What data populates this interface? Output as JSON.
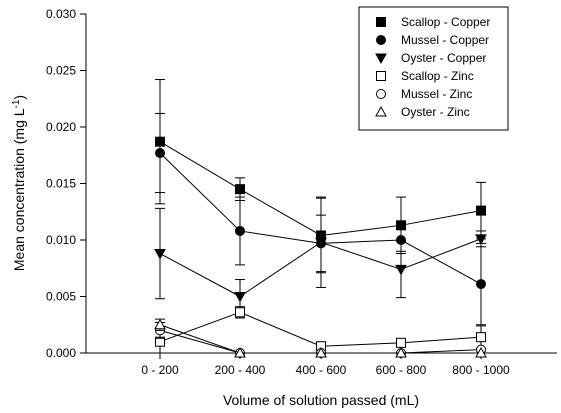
{
  "chart_data": {
    "type": "line",
    "xlabel": "Volume of solution passed (mL)",
    "ylabel": "Mean concentration (mg L",
    "ylabel_superscript": "-1",
    "ylabel_close": ")",
    "categories": [
      "0 - 200",
      "200 - 400",
      "400 - 600",
      "600 - 800",
      "800 - 1000"
    ],
    "ylim": [
      0,
      0.03
    ],
    "yticks": [
      "0.000",
      "0.005",
      "0.010",
      "0.015",
      "0.020",
      "0.025",
      "0.030"
    ],
    "legend_position": "top-right",
    "series": [
      {
        "name": "Scallop - Copper",
        "marker": "square-filled",
        "values": [
          0.0187,
          0.0145,
          0.0104,
          0.0113,
          0.0126
        ],
        "error": [
          0.0055,
          0.001,
          0.0033,
          0.0025,
          0.0025
        ]
      },
      {
        "name": "Mussel - Copper",
        "marker": "circle-filled",
        "values": [
          0.0177,
          0.0108,
          0.0097,
          0.01,
          0.0061
        ],
        "error": [
          0.0035,
          0.003,
          0.0025,
          0.001,
          0.0036
        ]
      },
      {
        "name": "Oyster - Copper",
        "marker": "triangle-down-filled",
        "values": [
          0.0088,
          0.005,
          0.0098,
          0.0074,
          0.0101
        ],
        "error": [
          0.004,
          0.0015,
          0.004,
          0.0025,
          0.0007
        ]
      },
      {
        "name": "Scallop - Zinc",
        "marker": "square-open",
        "values": [
          0.001,
          0.0036,
          0.0006,
          0.0009,
          0.0014
        ],
        "error": [
          0.001,
          0.0005,
          0.0002,
          0.0002,
          0.001
        ]
      },
      {
        "name": "Mussel - Zinc",
        "marker": "circle-open",
        "values": [
          0.002,
          0.0,
          0.0,
          0.0,
          0.0003
        ],
        "error": [
          0.0007,
          0,
          0,
          0,
          0
        ]
      },
      {
        "name": "Oyster - Zinc",
        "marker": "triangle-up-open",
        "values": [
          0.0025,
          0.0,
          0.0,
          0.0,
          0.0
        ],
        "error": [
          0.0005,
          0,
          0,
          0,
          0
        ]
      }
    ]
  }
}
